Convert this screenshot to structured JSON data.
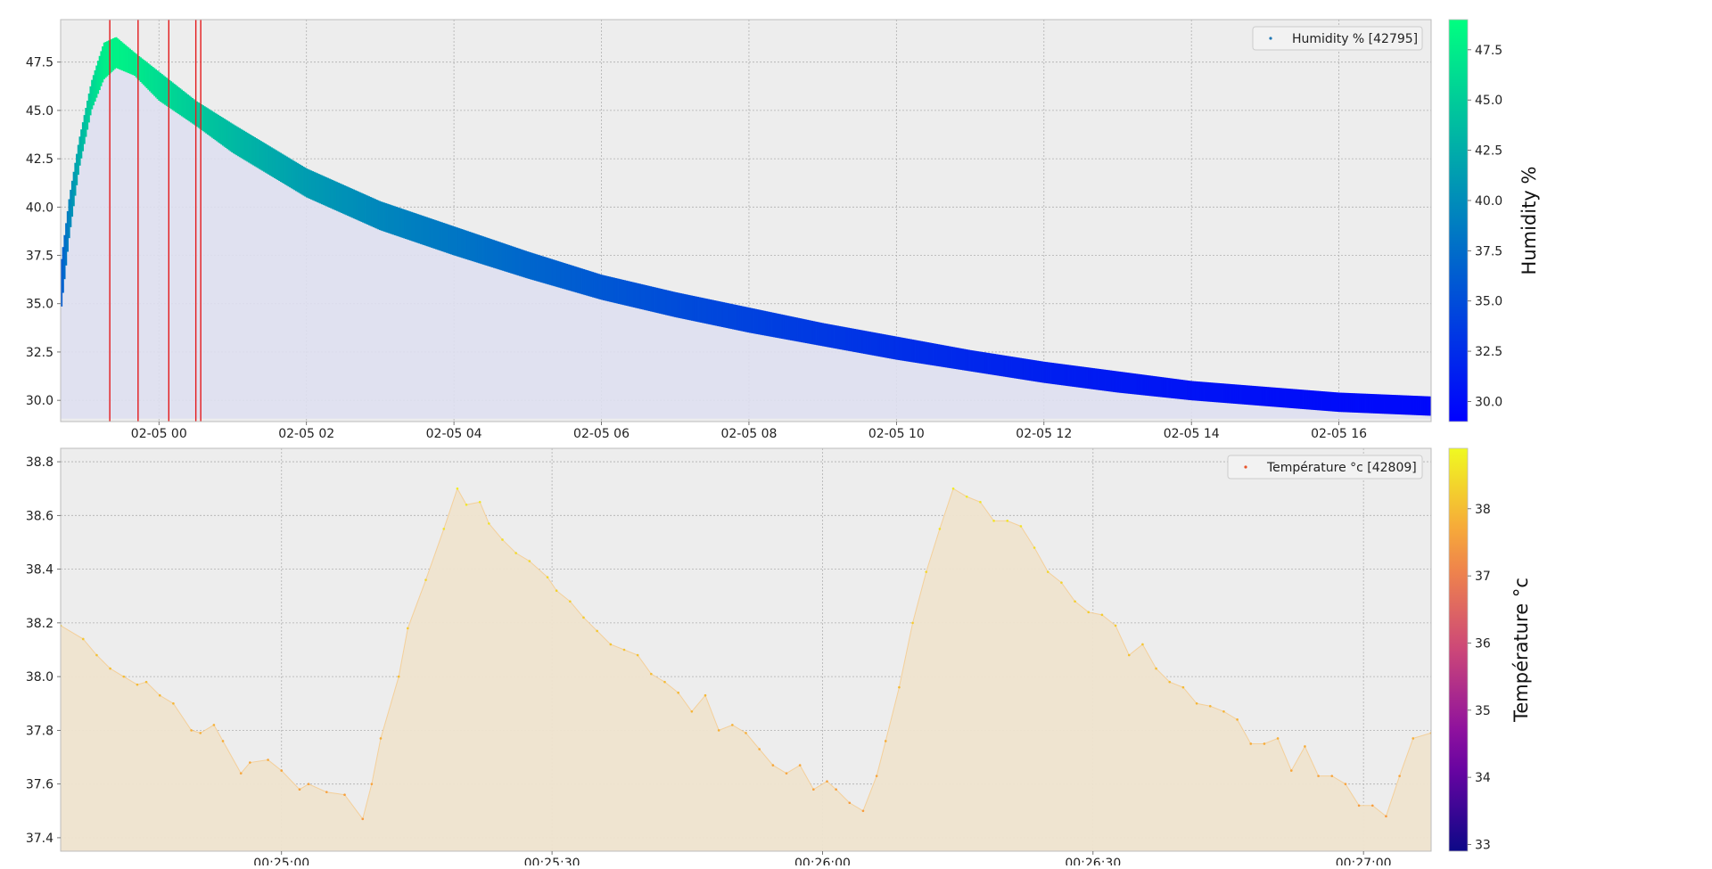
{
  "chart_data": [
    {
      "type": "scatter",
      "fill_area": true,
      "legend": "top-right",
      "legend_label": "Humidity % [42795]",
      "colorbar_label": "Humidity %",
      "colormap": "winter",
      "colorbar_range": [
        29,
        49
      ],
      "colorbar_ticks": [
        30.0,
        32.5,
        35.0,
        37.5,
        40.0,
        42.5,
        45.0,
        47.5
      ],
      "colorbar_tick_labels": [
        "30.0",
        "32.5",
        "35.0",
        "37.5",
        "40.0",
        "42.5",
        "45.0",
        "47.5"
      ],
      "grid": true,
      "x_axis": "datetime",
      "xlim": [
        "2019-02-04T22:40",
        "2019-02-05T17:15"
      ],
      "ylim": [
        28.9,
        49.7
      ],
      "xticks": [
        "2019-02-05T00:00",
        "2019-02-05T02:00",
        "2019-02-05T04:00",
        "2019-02-05T06:00",
        "2019-02-05T08:00",
        "2019-02-05T10:00",
        "2019-02-05T12:00",
        "2019-02-05T14:00",
        "2019-02-05T16:00"
      ],
      "xtick_labels": [
        "02-05 00",
        "02-05 02",
        "02-05 04",
        "02-05 06",
        "02-05 08",
        "02-05 10",
        "02-05 12",
        "02-05 14",
        "02-05 16"
      ],
      "yticks": [
        30.0,
        32.5,
        35.0,
        37.5,
        40.0,
        42.5,
        45.0,
        47.5
      ],
      "ytick_labels": [
        "30.0",
        "32.5",
        "35.0",
        "37.5",
        "40.0",
        "42.5",
        "45.0",
        "47.5"
      ],
      "band": {
        "x": [
          "2019-02-04T22:40",
          "2019-02-04T22:47",
          "2019-02-04T22:55",
          "2019-02-04T23:05",
          "2019-02-04T23:15",
          "2019-02-04T23:25",
          "2019-02-04T23:40",
          "2019-02-05T00:00",
          "2019-02-05T00:30",
          "2019-02-05T01:00",
          "2019-02-05T02:00",
          "2019-02-05T03:00",
          "2019-02-05T04:00",
          "2019-02-05T05:00",
          "2019-02-05T06:00",
          "2019-02-05T07:00",
          "2019-02-05T08:00",
          "2019-02-05T09:00",
          "2019-02-05T10:00",
          "2019-02-05T11:00",
          "2019-02-05T12:00",
          "2019-02-05T13:00",
          "2019-02-05T14:00",
          "2019-02-05T15:00",
          "2019-02-05T16:00",
          "2019-02-05T17:15"
        ],
        "high": [
          37.0,
          40.5,
          43.5,
          46.5,
          48.5,
          48.8,
          48.0,
          47.0,
          45.5,
          44.3,
          42.0,
          40.3,
          39.0,
          37.7,
          36.5,
          35.6,
          34.8,
          34.0,
          33.3,
          32.6,
          32.0,
          31.5,
          31.0,
          30.7,
          30.4,
          30.2
        ],
        "low": [
          34.5,
          38.5,
          42.0,
          45.0,
          46.6,
          47.2,
          46.8,
          45.5,
          44.2,
          42.8,
          40.5,
          38.8,
          37.5,
          36.3,
          35.2,
          34.3,
          33.5,
          32.8,
          32.1,
          31.5,
          30.9,
          30.4,
          30.0,
          29.7,
          29.4,
          29.2
        ]
      },
      "event_lines": [
        "2019-02-04T23:20",
        "2019-02-04T23:43",
        "2019-02-05T00:08",
        "2019-02-05T00:30",
        "2019-02-05T00:34"
      ],
      "event_color": "#e41a1c"
    },
    {
      "type": "scatter",
      "fill_area": true,
      "legend": "top-right",
      "legend_label": "Température °c [42809]",
      "colorbar_label": "Température °c",
      "colormap": "plasma",
      "colorbar_range": [
        32.9,
        38.9
      ],
      "colorbar_ticks": [
        33,
        34,
        35,
        36,
        37,
        38
      ],
      "colorbar_tick_labels": [
        "33",
        "34",
        "35",
        "36",
        "37",
        "38"
      ],
      "grid": true,
      "x_axis": "time_seconds",
      "xlim": [
        1475.5,
        1627.5
      ],
      "ylim": [
        37.35,
        38.85
      ],
      "xticks": [
        1500,
        1530,
        1560,
        1590,
        1620
      ],
      "xtick_labels": [
        "00:25:00",
        "00:25:30",
        "00:26:00",
        "00:26:30",
        "00:27:00"
      ],
      "yticks": [
        37.4,
        37.6,
        37.8,
        38.0,
        38.2,
        38.4,
        38.6,
        38.8
      ],
      "ytick_labels": [
        "37.4",
        "37.6",
        "37.8",
        "38.0",
        "38.2",
        "38.4",
        "38.6",
        "38.8"
      ],
      "x": [
        1475.5,
        1478,
        1479.5,
        1481,
        1482.5,
        1484,
        1485,
        1486.5,
        1488,
        1490,
        1491,
        1492.5,
        1493.5,
        1495.5,
        1496.5,
        1498.5,
        1500,
        1502,
        1503,
        1505,
        1507,
        1509,
        1510,
        1511,
        1513,
        1514,
        1516,
        1518,
        1519.5,
        1520.5,
        1522,
        1523,
        1524.5,
        1526,
        1527.5,
        1529.5,
        1530.5,
        1532,
        1533.5,
        1535,
        1536.5,
        1538,
        1539.5,
        1541,
        1542.5,
        1544,
        1545.5,
        1547,
        1548.5,
        1550,
        1551.5,
        1553,
        1554.5,
        1556,
        1557.5,
        1559,
        1560.5,
        1561.5,
        1563,
        1564.5,
        1566,
        1567,
        1568.5,
        1570,
        1571.5,
        1573,
        1574.5,
        1576,
        1577.5,
        1579,
        1580.5,
        1582,
        1583.5,
        1585,
        1586.5,
        1588,
        1589.5,
        1591,
        1592.5,
        1594,
        1595.5,
        1597,
        1598.5,
        1600,
        1601.5,
        1603,
        1604.5,
        1606,
        1607.5,
        1609,
        1610.5,
        1612,
        1613.5,
        1615,
        1616.5,
        1618,
        1619.5,
        1621,
        1622.5,
        1624,
        1625.5,
        1627.5
      ],
      "y": [
        38.19,
        38.14,
        38.08,
        38.03,
        38.0,
        37.97,
        37.98,
        37.93,
        37.9,
        37.8,
        37.79,
        37.82,
        37.76,
        37.64,
        37.68,
        37.69,
        37.65,
        37.58,
        37.6,
        37.57,
        37.56,
        37.47,
        37.6,
        37.77,
        38.0,
        38.18,
        38.36,
        38.55,
        38.7,
        38.64,
        38.65,
        38.57,
        38.51,
        38.46,
        38.43,
        38.37,
        38.32,
        38.28,
        38.22,
        38.17,
        38.12,
        38.1,
        38.08,
        38.01,
        37.98,
        37.94,
        37.87,
        37.93,
        37.8,
        37.82,
        37.79,
        37.73,
        37.67,
        37.64,
        37.67,
        37.58,
        37.61,
        37.58,
        37.53,
        37.5,
        37.63,
        37.76,
        37.96,
        38.2,
        38.39,
        38.55,
        38.7,
        38.67,
        38.65,
        38.58,
        38.58,
        38.56,
        38.48,
        38.39,
        38.35,
        38.28,
        38.24,
        38.23,
        38.19,
        38.08,
        38.12,
        38.03,
        37.98,
        37.96,
        37.9,
        37.89,
        37.87,
        37.84,
        37.75,
        37.75,
        37.77,
        37.65,
        37.74,
        37.63,
        37.63,
        37.6,
        37.52,
        37.52,
        37.48,
        37.63,
        37.77,
        37.79
      ]
    }
  ]
}
